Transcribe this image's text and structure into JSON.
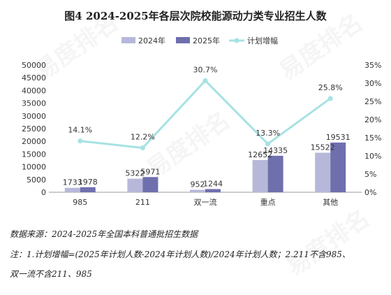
{
  "title": "图4  2024-2025年各层次院校能源动力类专业招生人数",
  "colors": {
    "bar2024": "#b7b8d9",
    "bar2025": "#6f6fae",
    "line": "#a6e2e2",
    "axis": "#999999",
    "grid": "#e0e0e0"
  },
  "chart_data": {
    "type": "bar",
    "categories": [
      "985",
      "211",
      "双一流",
      "重点",
      "其他"
    ],
    "series": [
      {
        "name": "2024年",
        "values": [
          1733,
          5322,
          952,
          12652,
          15522
        ]
      },
      {
        "name": "2025年",
        "values": [
          1978,
          5971,
          1244,
          14335,
          19531
        ]
      }
    ],
    "line_series": {
      "name": "计划增幅",
      "values": [
        14.1,
        12.2,
        30.7,
        13.3,
        25.8
      ],
      "labels": [
        "14.1%",
        "12.2%",
        "30.7%",
        "13.3%",
        "25.8%"
      ]
    },
    "y_left": {
      "min": 0,
      "max": 50000,
      "ticks": [
        "0",
        "5000",
        "10000",
        "15000",
        "20000",
        "25000",
        "30000",
        "35000",
        "40000",
        "45000",
        "50000"
      ]
    },
    "y_right": {
      "min": 0,
      "max": 35,
      "ticks": [
        "0%",
        "5%",
        "10%",
        "15%",
        "20%",
        "25%",
        "30%",
        "35%"
      ]
    },
    "legend_position": "top"
  },
  "footer": {
    "source": "数据来源：2024-2025年全国本科普通批招生数据",
    "note_line1": "注：1.计划增幅=(2025年计划人数-2024年计划人数)/2024年计划人数；2.211不含985、",
    "note_line2": "双一流不含211、985"
  },
  "watermark": {
    "text": "易度排名",
    "sub": "EDU Ranking.cn"
  }
}
